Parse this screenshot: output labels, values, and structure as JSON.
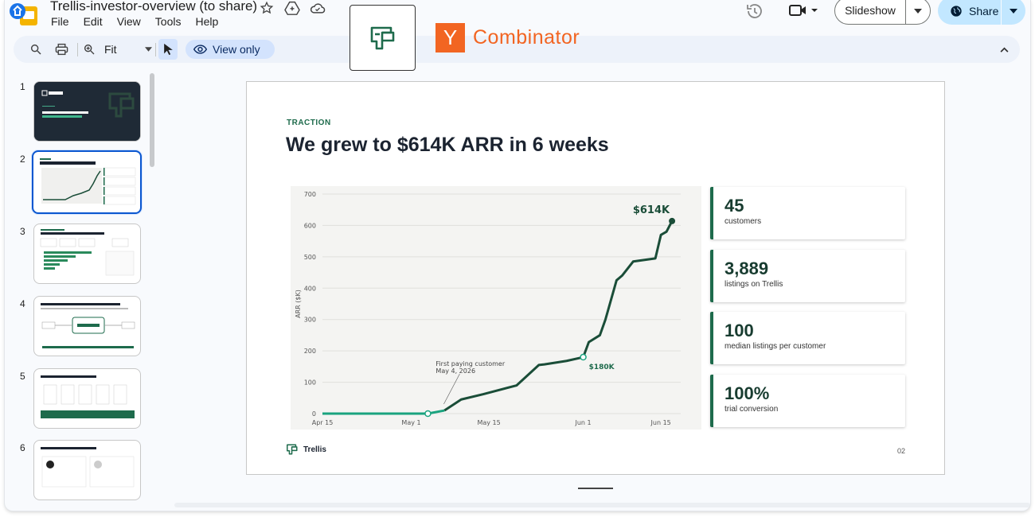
{
  "app": {
    "doc_title": "Trellis-investor-overview (to share)",
    "menu": [
      "File",
      "Edit",
      "View",
      "Tools",
      "Help"
    ]
  },
  "header": {
    "slideshow_label": "Slideshow",
    "share_label": "Share",
    "overlay_brand": "Combinator",
    "overlay_brand_letter": "Y"
  },
  "toolbar": {
    "zoom_value": "Fit",
    "view_only_label": "View only"
  },
  "filmstrip": {
    "slides": [
      {
        "number": "1"
      },
      {
        "number": "2"
      },
      {
        "number": "3"
      },
      {
        "number": "4"
      },
      {
        "number": "5"
      },
      {
        "number": "6"
      }
    ],
    "selected": "2"
  },
  "slide": {
    "section_tag": "TRACTION",
    "headline": "We grew to $614K ARR in 6 weeks",
    "footer_brand": "Trellis",
    "page_number": "02",
    "stats": [
      {
        "value": "45",
        "label": "customers"
      },
      {
        "value": "3,889",
        "label": "listings on Trellis"
      },
      {
        "value": "100",
        "label": "median listings per customer"
      },
      {
        "value": "100%",
        "label": "trial conversion"
      }
    ]
  },
  "chart_data": {
    "type": "line",
    "ylabel": "ARR ($K)",
    "ylim": [
      0,
      700
    ],
    "yticks": [
      0,
      100,
      200,
      300,
      400,
      500,
      600,
      700
    ],
    "xticks": [
      "Apr 15",
      "May 1",
      "May 15",
      "Jun 1",
      "Jun 15"
    ],
    "x": [
      "2026-04-15",
      "2026-05-04",
      "2026-05-07",
      "2026-05-10",
      "2026-05-14",
      "2026-05-20",
      "2026-05-24",
      "2026-05-25",
      "2026-05-29",
      "2026-06-01",
      "2026-06-02",
      "2026-06-04",
      "2026-06-05",
      "2026-06-07",
      "2026-06-08",
      "2026-06-10",
      "2026-06-14",
      "2026-06-15",
      "2026-06-16",
      "2026-06-17"
    ],
    "y": [
      0,
      0,
      10,
      45,
      62,
      90,
      155,
      157,
      168,
      180,
      228,
      250,
      300,
      425,
      440,
      485,
      495,
      570,
      580,
      614
    ],
    "color": "#1a4d38",
    "pre_revenue_color": "#1aa37f",
    "annotations": [
      {
        "text": "First paying customer",
        "subtext": "May 4, 2026",
        "x": "2026-05-04",
        "y": 0
      },
      {
        "text": "$180K",
        "x": "2026-06-01",
        "y": 180
      },
      {
        "text": "$614K",
        "x": "2026-06-17",
        "y": 614
      }
    ]
  },
  "colors": {
    "accent": "#1e6b4c",
    "share_bg": "#c2e7ff",
    "yc_orange": "#f26522",
    "selection_blue": "#0b57d0"
  }
}
